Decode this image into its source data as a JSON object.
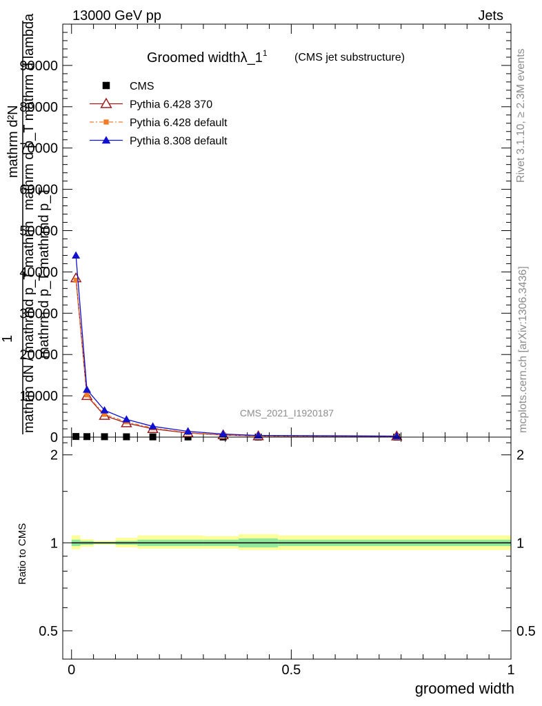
{
  "header": {
    "left": "13000 GeV pp",
    "right": "Jets"
  },
  "side_text": {
    "rivet": "Rivet 3.1.10, ≥ 2.3M events",
    "mcplots": "mcplots.cern.ch [arXiv:1306.3436]"
  },
  "chart_data": [
    {
      "type": "line",
      "title": "Groomed widthλ_1",
      "title_superscript": "1",
      "subtitle": "(CMS jet substructure)",
      "watermark": "CMS_2021_I1920187",
      "xlabel": "groomed width",
      "ylabel_lines": [
        "mathrm d²N",
        "mathrm d p_T mathrm d lambda",
        "1",
        "mathrm dN / mathrmd p_T mathrm",
        "mathrm d p_T mathrmd p_T"
      ],
      "xlim": [
        -0.02,
        1.0
      ],
      "ylim": [
        0,
        100000
      ],
      "x_ticks": [
        0,
        0.5,
        1
      ],
      "x_tick_labels": [
        "0",
        "0.5",
        "1"
      ],
      "y_ticks": [
        0,
        10000,
        20000,
        30000,
        40000,
        50000,
        60000,
        70000,
        80000,
        90000
      ],
      "y_tick_labels": [
        "0",
        "10000",
        "20000",
        "30000",
        "40000",
        "50000",
        "60000",
        "70000",
        "80000",
        "90000"
      ],
      "legend_position": "top-left",
      "series": [
        {
          "name": "CMS",
          "color": "#000000",
          "marker": "square",
          "x": [
            0.01,
            0.035,
            0.075,
            0.125,
            0.185,
            0.265,
            0.345,
            0.425,
            0.74
          ],
          "y": [
            150,
            120,
            100,
            80,
            60,
            40,
            25,
            15,
            5
          ]
        },
        {
          "name": "Pythia 6.428 370",
          "color": "#9b1c1c",
          "marker": "triangle-open",
          "x": [
            0.01,
            0.035,
            0.075,
            0.125,
            0.185,
            0.265,
            0.345,
            0.425,
            0.74
          ],
          "y": [
            38500,
            10000,
            5200,
            3400,
            2000,
            1000,
            500,
            250,
            200
          ]
        },
        {
          "name": "Pythia 6.428 default",
          "color": "#f07c2a",
          "marker": "square-small",
          "x": [
            0.01,
            0.035,
            0.075,
            0.125,
            0.185,
            0.265,
            0.345,
            0.425,
            0.74
          ],
          "y": [
            38000,
            10200,
            5500,
            3700,
            2200,
            1100,
            550,
            280,
            220
          ]
        },
        {
          "name": "Pythia 8.308 default",
          "color": "#1010d0",
          "marker": "triangle",
          "x": [
            0.01,
            0.035,
            0.075,
            0.125,
            0.185,
            0.265,
            0.345,
            0.425,
            0.74
          ],
          "y": [
            44000,
            11500,
            6500,
            4300,
            2600,
            1400,
            750,
            400,
            250
          ]
        }
      ]
    },
    {
      "type": "area",
      "ylabel": "Ratio to CMS",
      "xlim": [
        -0.02,
        1.0
      ],
      "ylim": [
        0.4,
        2.3
      ],
      "scale": "log",
      "y_ticks": [
        0.5,
        1,
        2
      ],
      "y_tick_labels": [
        "0.5",
        "1",
        "2"
      ],
      "band_colors": {
        "inner": "#8ee99a",
        "outer": "#ffff99"
      },
      "bands": [
        {
          "x0": 0.0,
          "x1": 0.02,
          "inner": [
            0.975,
            1.025
          ],
          "outer": [
            0.95,
            1.06
          ]
        },
        {
          "x0": 0.02,
          "x1": 0.05,
          "inner": [
            0.985,
            1.015
          ],
          "outer": [
            0.97,
            1.03
          ]
        },
        {
          "x0": 0.05,
          "x1": 0.1,
          "inner": [
            0.992,
            1.008
          ],
          "outer": [
            0.985,
            1.015
          ]
        },
        {
          "x0": 0.1,
          "x1": 0.15,
          "inner": [
            0.985,
            1.015
          ],
          "outer": [
            0.965,
            1.04
          ]
        },
        {
          "x0": 0.15,
          "x1": 0.3,
          "inner": [
            0.975,
            1.025
          ],
          "outer": [
            0.955,
            1.06
          ]
        },
        {
          "x0": 0.3,
          "x1": 0.38,
          "inner": [
            0.975,
            1.025
          ],
          "outer": [
            0.955,
            1.055
          ]
        },
        {
          "x0": 0.38,
          "x1": 0.47,
          "inner": [
            0.965,
            1.035
          ],
          "outer": [
            0.945,
            1.07
          ]
        },
        {
          "x0": 0.47,
          "x1": 1.0,
          "inner": [
            0.975,
            1.025
          ],
          "outer": [
            0.945,
            1.06
          ]
        }
      ],
      "reference_line": 1
    }
  ]
}
